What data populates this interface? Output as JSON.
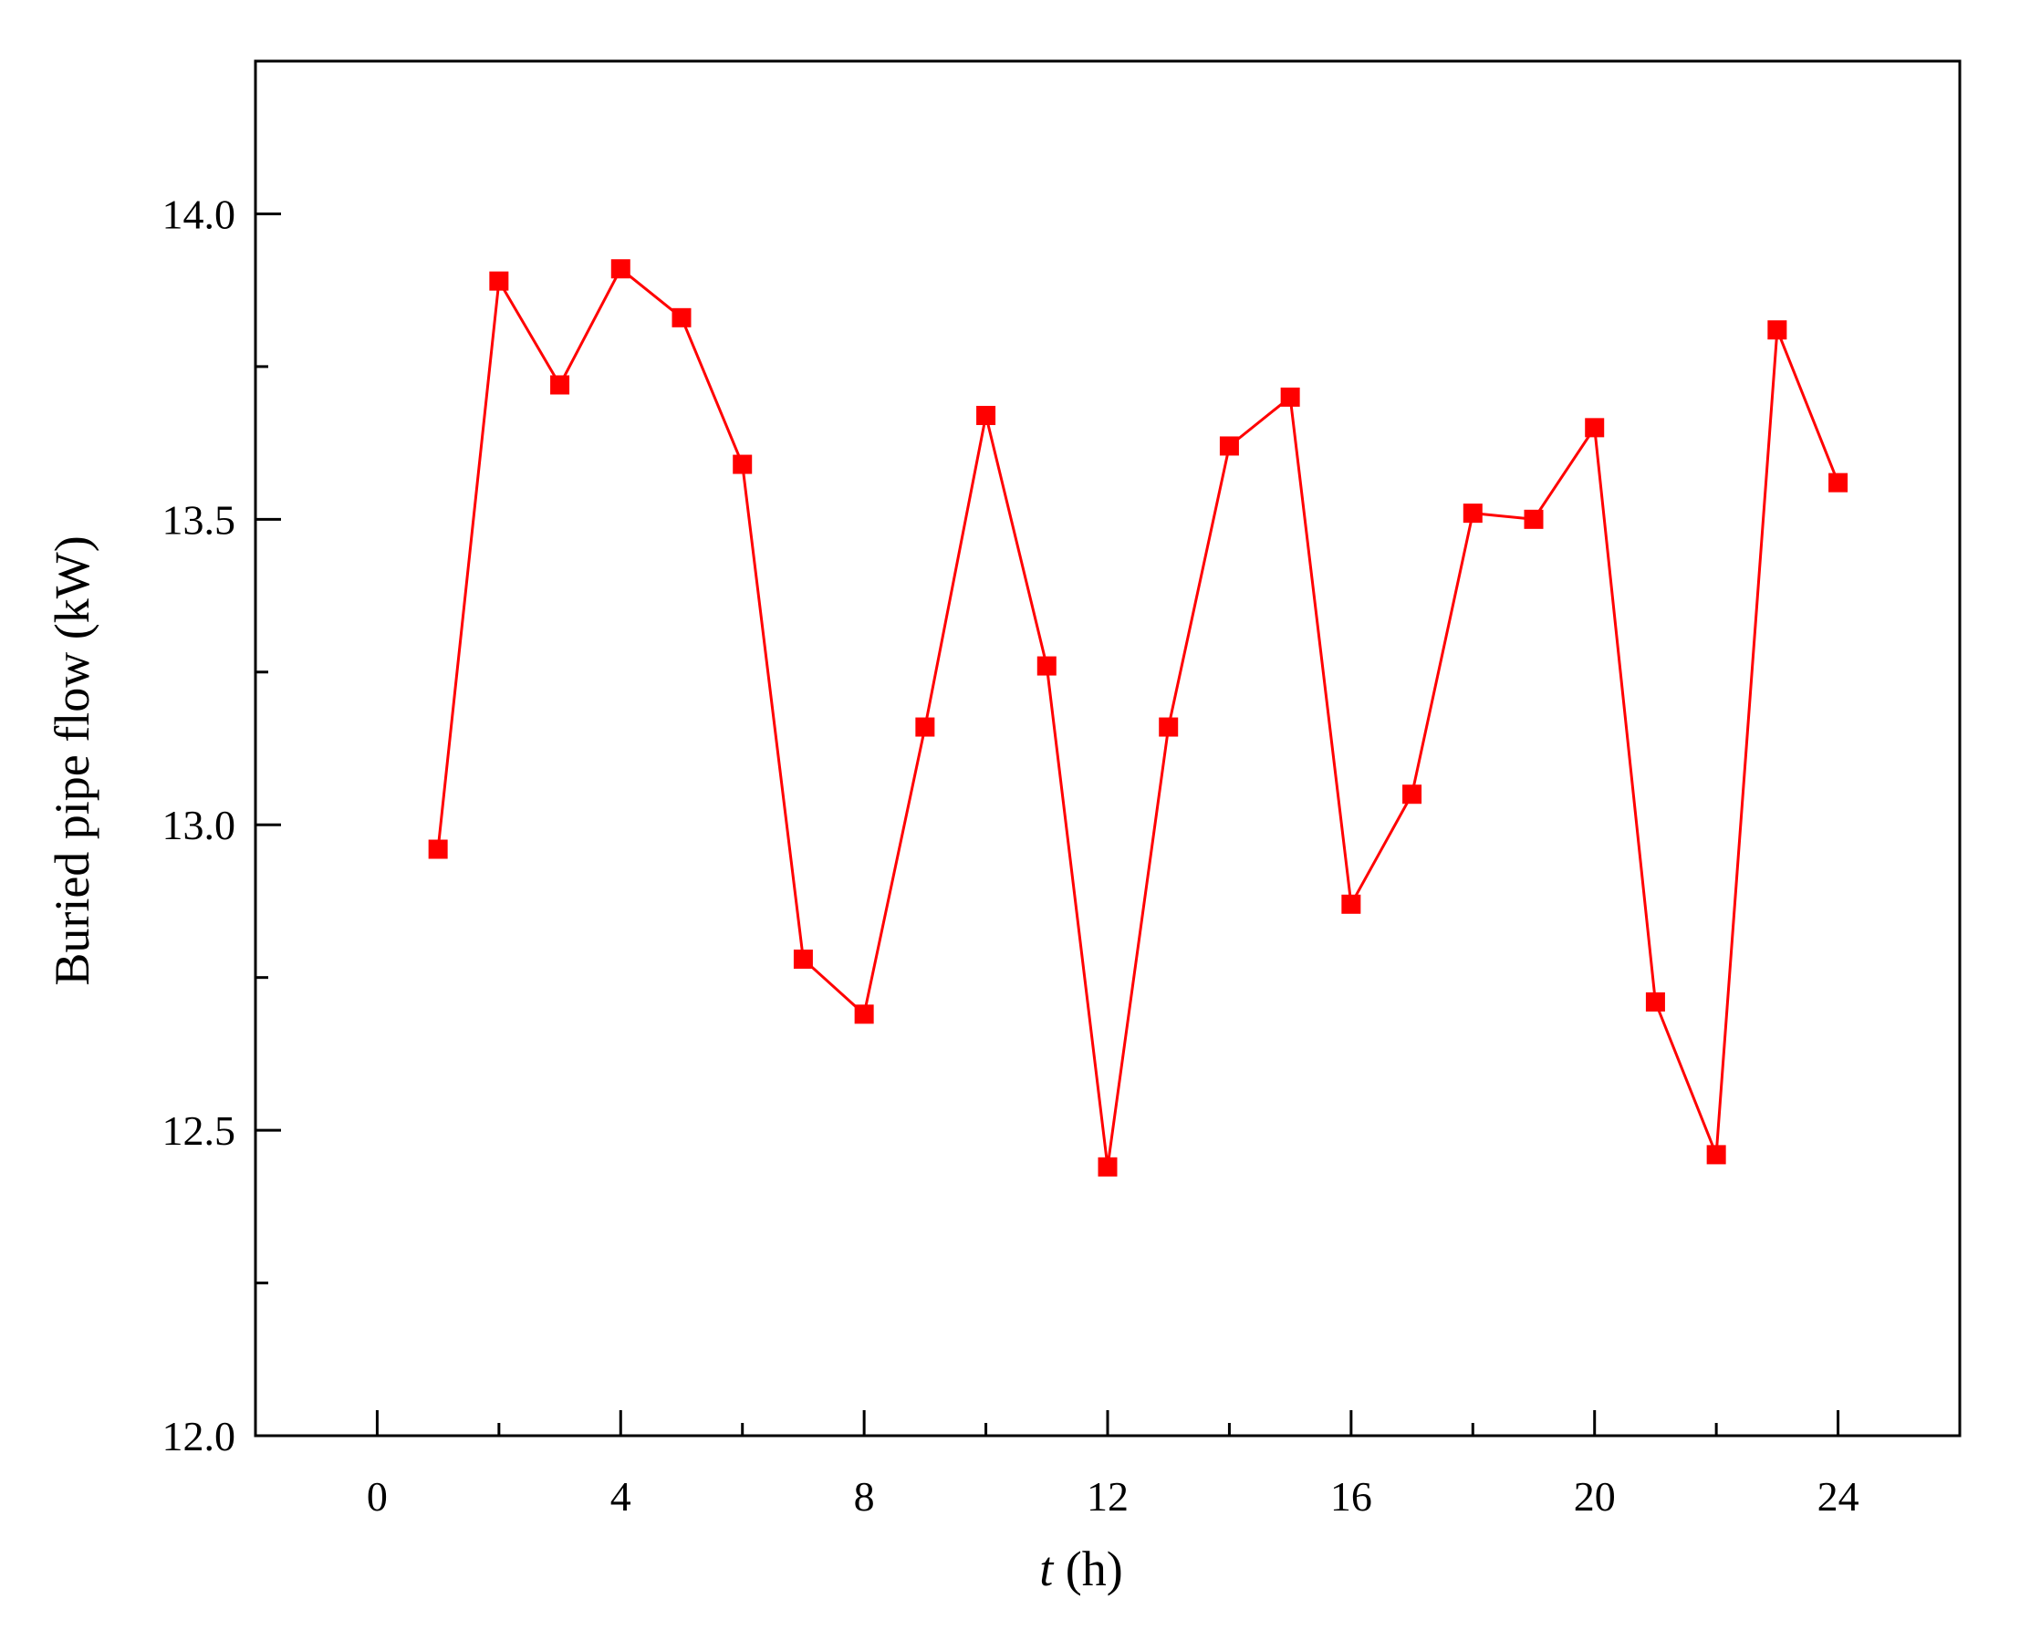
{
  "chart_data": {
    "type": "line",
    "title": "",
    "xlabel": "t (h)",
    "xlabel_italic_part": "t",
    "xlabel_rest": " (h)",
    "ylabel": "Buried pipe flow (kW)",
    "xlim": [
      -2,
      26
    ],
    "ylim": [
      12.0,
      14.25
    ],
    "x_ticks": [
      0,
      4,
      8,
      12,
      16,
      20,
      24
    ],
    "x_tick_labels": [
      "0",
      "4",
      "8",
      "12",
      "16",
      "20",
      "24"
    ],
    "x_minor_ticks": [
      2,
      6,
      10,
      14,
      18,
      22,
      26
    ],
    "y_ticks": [
      12.0,
      12.5,
      13.0,
      13.5,
      14.0
    ],
    "y_tick_labels": [
      "12.0",
      "12.5",
      "13.0",
      "13.5",
      "14.0"
    ],
    "y_minor_ticks": [
      12.25,
      12.75,
      13.25,
      13.75
    ],
    "grid": false,
    "legend": "none",
    "series": [
      {
        "color": "#ff0000",
        "marker": "square",
        "x": [
          1,
          2,
          3,
          4,
          5,
          6,
          7,
          8,
          9,
          10,
          11,
          12,
          13,
          14,
          15,
          16,
          17,
          18,
          19,
          20,
          21,
          22,
          23,
          24
        ],
        "y": [
          12.96,
          13.89,
          13.72,
          13.91,
          13.83,
          13.59,
          12.78,
          12.69,
          13.16,
          13.67,
          13.26,
          12.44,
          13.16,
          13.62,
          13.7,
          12.87,
          13.05,
          13.51,
          13.5,
          13.65,
          12.71,
          12.46,
          13.81,
          13.56
        ]
      }
    ]
  }
}
